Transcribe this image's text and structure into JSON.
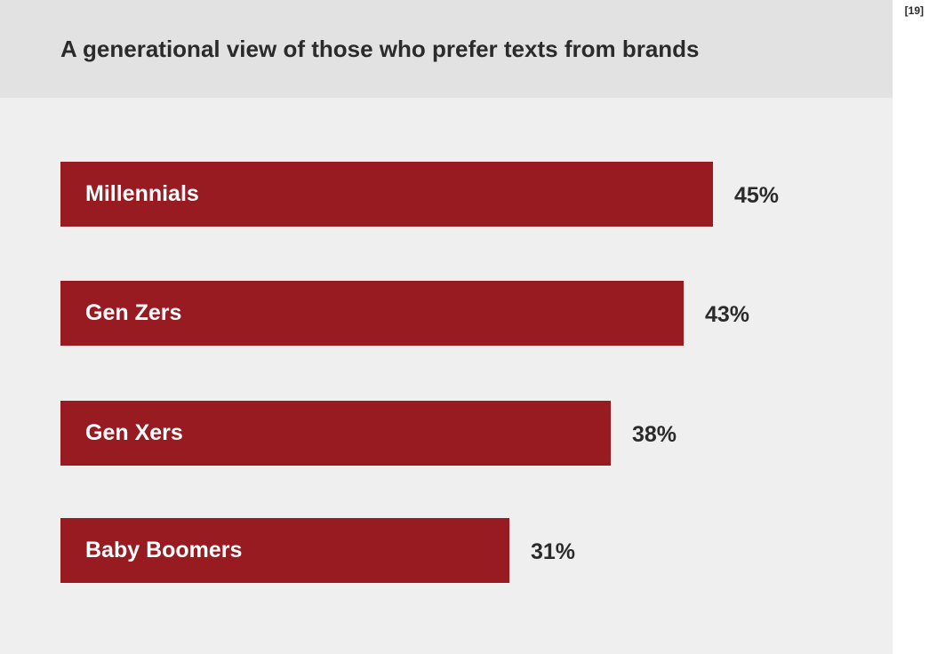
{
  "chart_data": {
    "type": "bar",
    "orientation": "horizontal",
    "title": "A generational view of those who prefer texts from brands",
    "categories": [
      "Millennials",
      "Gen Zers",
      "Gen Xers",
      "Baby Boomers"
    ],
    "values": [
      45,
      43,
      38,
      31
    ],
    "value_labels": [
      "45%",
      "43%",
      "38%",
      "31%"
    ],
    "unit": "%",
    "xlabel": "",
    "ylabel": "",
    "grid": false,
    "legend": "none",
    "bar_color": "#981b21"
  },
  "footnote": "[19]"
}
